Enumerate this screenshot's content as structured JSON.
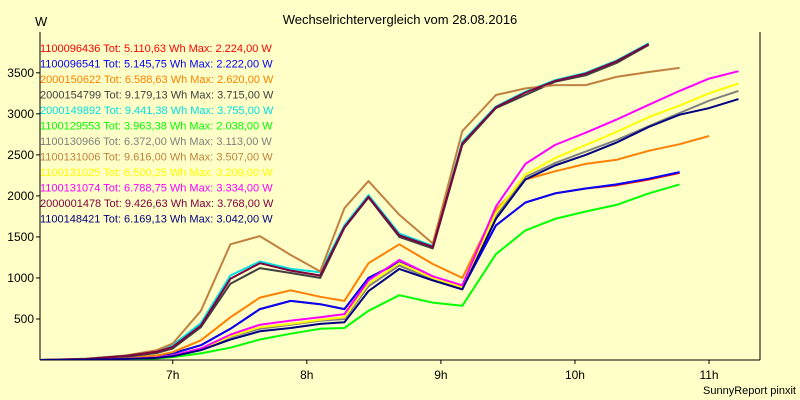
{
  "chart_data": {
    "type": "line",
    "title": "Wechselrichtervergleich vom 28.08.2016",
    "ylabel": "W",
    "xlabel": "",
    "footer": "SunnyReport pinxit",
    "ylim": [
      0,
      3900
    ],
    "xlim": [
      6.01,
      11.38
    ],
    "yticks": [
      500,
      1000,
      1500,
      2000,
      2500,
      3000,
      3500
    ],
    "xticks": [
      {
        "value": 7,
        "label": "7h"
      },
      {
        "value": 8,
        "label": "8h"
      },
      {
        "value": 9,
        "label": "9h"
      },
      {
        "value": 10,
        "label": "10h"
      },
      {
        "value": 11,
        "label": "11h"
      }
    ],
    "grid": false,
    "legend_position": "top-left",
    "x": [
      6.0,
      6.35,
      6.65,
      6.88,
      7.0,
      7.21,
      7.43,
      7.65,
      7.88,
      8.1,
      8.28,
      8.46,
      8.69,
      8.94,
      9.16,
      9.41,
      9.63,
      9.85,
      10.08,
      10.31,
      10.55,
      10.78,
      11.0,
      11.22,
      11.38
    ],
    "series": [
      {
        "name": "1100096436 Tot: 5.110,63 Wh Max: 2.224,00 W",
        "color": "#ff0000",
        "values": [
          0,
          5,
          20,
          45,
          80,
          180,
          380,
          620,
          720,
          680,
          620,
          1000,
          1190,
          1000,
          870,
          1640,
          1920,
          2030,
          2090,
          2130,
          2200,
          2280,
          null,
          null,
          null
        ]
      },
      {
        "name": "1100096541 Tot: 5.145,75 Wh Max: 2.222,00 W",
        "color": "#0000ff",
        "values": [
          0,
          5,
          20,
          45,
          80,
          180,
          380,
          620,
          720,
          680,
          620,
          1000,
          1190,
          1000,
          870,
          1640,
          1920,
          2030,
          2090,
          2140,
          2210,
          2290,
          null,
          null,
          null
        ]
      },
      {
        "name": "2000150622 Tot: 6.588,63 Wh Max: 2.620,00 W",
        "color": "#ff8000",
        "values": [
          0,
          8,
          25,
          55,
          95,
          240,
          520,
          760,
          850,
          770,
          720,
          1180,
          1410,
          1170,
          1000,
          1830,
          2200,
          2300,
          2390,
          2440,
          2550,
          2630,
          2730,
          null,
          null
        ]
      },
      {
        "name": "2000154799 Tot: 9.179,13 Wh Max: 3.715,00 W",
        "color": "#404040",
        "values": [
          0,
          10,
          40,
          85,
          140,
          400,
          930,
          1120,
          1060,
          1000,
          1610,
          1980,
          1500,
          1360,
          2620,
          3070,
          3230,
          3390,
          3470,
          3620,
          3840,
          null,
          null,
          null,
          null
        ]
      },
      {
        "name": "2000149892 Tot: 9.441,38 Wh Max: 3.755,00 W",
        "color": "#00e0e0",
        "values": [
          0,
          15,
          55,
          110,
          180,
          450,
          1030,
          1200,
          1110,
          1070,
          1640,
          2010,
          1540,
          1390,
          2660,
          3090,
          3270,
          3410,
          3500,
          3650,
          3860,
          null,
          null,
          null,
          null
        ]
      },
      {
        "name": "1100129553 Tot: 3.963,38 Wh Max: 2.038,00 W",
        "color": "#00ff00",
        "values": [
          0,
          3,
          10,
          20,
          35,
          80,
          150,
          250,
          320,
          380,
          390,
          600,
          790,
          700,
          660,
          1290,
          1580,
          1720,
          1810,
          1890,
          2030,
          2140,
          null,
          null,
          null
        ]
      },
      {
        "name": "1100130966 Tot: 6.372,00 Wh Max: 3.113,00 W",
        "color": "#808080",
        "values": [
          0,
          5,
          15,
          30,
          55,
          130,
          280,
          380,
          430,
          480,
          500,
          900,
          1150,
          980,
          870,
          1760,
          2230,
          2400,
          2540,
          2680,
          2850,
          3010,
          3160,
          3280,
          null
        ]
      },
      {
        "name": "1100131006 Tot: 9.616,00 Wh Max: 3.507,00 W",
        "color": "#c08040",
        "values": [
          0,
          15,
          55,
          120,
          200,
          600,
          1410,
          1510,
          1280,
          1080,
          1850,
          2180,
          1770,
          1420,
          2790,
          3230,
          3310,
          3350,
          3350,
          3450,
          3510,
          3560,
          null,
          null,
          null
        ]
      },
      {
        "name": "1100131025 Tot: 6.500,25 Wh Max: 3.209,00 W",
        "color": "#ffff00",
        "values": [
          0,
          5,
          15,
          30,
          55,
          130,
          290,
          400,
          440,
          490,
          520,
          930,
          1180,
          1000,
          890,
          1790,
          2260,
          2460,
          2620,
          2780,
          2960,
          3100,
          3250,
          3370,
          null
        ]
      },
      {
        "name": "1100131074 Tot: 6.788,75 Wh Max: 3.334,00 W",
        "color": "#ff00ff",
        "values": [
          0,
          5,
          15,
          30,
          55,
          140,
          310,
          430,
          480,
          520,
          560,
          970,
          1220,
          1020,
          910,
          1870,
          2390,
          2620,
          2770,
          2930,
          3110,
          3280,
          3430,
          3520,
          null
        ]
      },
      {
        "name": "2000001478 Tot: 9.426,63 Wh Max: 3.768,00 W",
        "color": "#800040",
        "values": [
          0,
          12,
          50,
          100,
          160,
          420,
          990,
          1180,
          1090,
          1030,
          1620,
          1990,
          1520,
          1380,
          2640,
          3080,
          3260,
          3400,
          3490,
          3640,
          3850,
          null,
          null,
          null,
          null
        ]
      },
      {
        "name": "1100148421 Tot: 6.169,13 Wh Max: 3.042,00 W",
        "color": "#000080",
        "values": [
          0,
          5,
          12,
          25,
          45,
          120,
          250,
          350,
          390,
          440,
          460,
          840,
          1110,
          970,
          860,
          1720,
          2200,
          2370,
          2500,
          2650,
          2840,
          2990,
          3070,
          3180,
          null
        ]
      }
    ]
  }
}
